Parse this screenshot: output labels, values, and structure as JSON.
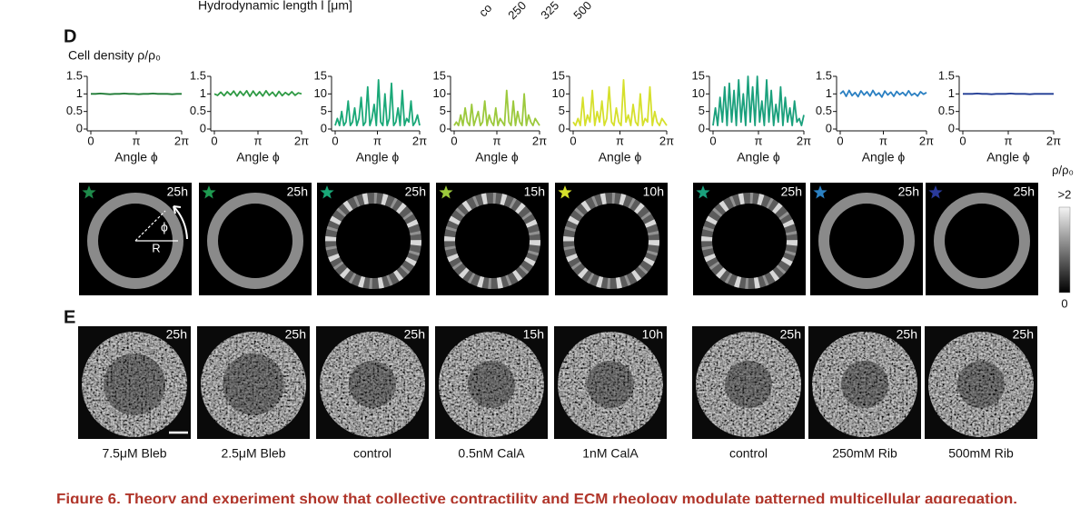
{
  "header": {
    "axis_label": "Hydrodynamic length l [μm]",
    "cropped_ticks": [
      "co",
      "250",
      "325",
      "500"
    ]
  },
  "panel_d": {
    "label": "D",
    "y_label": "Cell density ρ/ρ₀",
    "plots": [
      {
        "type": "line",
        "color": "#1e7a34",
        "xlim": [
          0,
          6.2832
        ],
        "xticks": [
          0,
          {
            "value": 3.1416,
            "label": "π"
          },
          {
            "value": 6.2832,
            "label": "2π"
          }
        ],
        "ylim": [
          0,
          1.5
        ],
        "yticks": [
          0,
          0.5,
          1,
          1.5
        ],
        "x_label": "Angle ϕ",
        "values": [
          1,
          1,
          1.01,
          1,
          0.99,
          1,
          1,
          1.01,
          1,
          1,
          0.99,
          1,
          1,
          1.01,
          1,
          1,
          1,
          0.99,
          1,
          1
        ]
      },
      {
        "type": "line",
        "color": "#2e9a44",
        "xlim": [
          0,
          6.2832
        ],
        "xticks": [
          0,
          {
            "value": 3.1416,
            "label": "π"
          },
          {
            "value": 6.2832,
            "label": "2π"
          }
        ],
        "ylim": [
          0,
          1.5
        ],
        "yticks": [
          0,
          0.5,
          1,
          1.5
        ],
        "x_label": "Angle ϕ",
        "values": [
          1,
          0.96,
          1.05,
          0.95,
          1.06,
          0.97,
          1.08,
          0.94,
          1.07,
          0.96,
          1.09,
          0.93,
          1.08,
          0.95,
          1.06,
          0.94,
          1.09,
          0.96,
          1.05,
          0.93,
          1.07,
          0.95,
          1.04,
          0.97,
          1.06,
          0.96,
          1.03,
          1
        ]
      },
      {
        "type": "line",
        "color": "#1aa878",
        "xlim": [
          0,
          6.2832
        ],
        "xticks": [
          0,
          {
            "value": 3.1416,
            "label": "π"
          },
          {
            "value": 6.2832,
            "label": "2π"
          }
        ],
        "ylim": [
          0,
          15
        ],
        "yticks": [
          0,
          5,
          10,
          15
        ],
        "x_label": "Angle ϕ",
        "values": [
          1,
          3,
          1,
          5,
          1,
          2,
          8,
          1,
          2,
          6,
          1,
          3,
          9,
          1,
          2,
          12,
          1,
          3,
          7,
          1,
          14,
          2,
          1,
          10,
          1,
          3,
          13,
          1,
          2,
          6,
          1,
          11,
          1,
          3,
          2,
          8,
          1,
          2,
          4,
          1
        ]
      },
      {
        "type": "line",
        "color": "#9cc93c",
        "xlim": [
          0,
          6.2832
        ],
        "xticks": [
          0,
          {
            "value": 3.1416,
            "label": "π"
          },
          {
            "value": 6.2832,
            "label": "2π"
          }
        ],
        "ylim": [
          0,
          15
        ],
        "yticks": [
          0,
          5,
          10,
          15
        ],
        "x_label": "Angle ϕ",
        "values": [
          1,
          2,
          1,
          4,
          1,
          6,
          2,
          1,
          7,
          1,
          3,
          5,
          1,
          2,
          8,
          1,
          4,
          2,
          1,
          6,
          1,
          3,
          2,
          1,
          11,
          2,
          1,
          8,
          1,
          5,
          2,
          1,
          10,
          1,
          4,
          2,
          1,
          3,
          2,
          1
        ]
      },
      {
        "type": "line",
        "color": "#d6e02c",
        "xlim": [
          0,
          6.2832
        ],
        "xticks": [
          0,
          {
            "value": 3.1416,
            "label": "π"
          },
          {
            "value": 6.2832,
            "label": "2π"
          }
        ],
        "ylim": [
          0,
          15
        ],
        "yticks": [
          0,
          5,
          10,
          15
        ],
        "x_label": "Angle ϕ",
        "values": [
          2,
          1,
          3,
          1,
          9,
          1,
          4,
          2,
          11,
          1,
          5,
          2,
          8,
          1,
          3,
          12,
          2,
          1,
          6,
          2,
          1,
          14,
          2,
          4,
          1,
          7,
          2,
          1,
          10,
          1,
          3,
          2,
          12,
          1,
          5,
          2,
          1,
          3,
          2,
          1
        ]
      },
      {
        "type": "line",
        "color": "#1aa07c",
        "xlim": [
          0,
          6.2832
        ],
        "xticks": [
          0,
          {
            "value": 3.1416,
            "label": "π"
          },
          {
            "value": 6.2832,
            "label": "2π"
          }
        ],
        "ylim": [
          0,
          15
        ],
        "yticks": [
          0,
          5,
          10,
          15
        ],
        "x_label": "Angle ϕ",
        "values": [
          1,
          6,
          1,
          9,
          2,
          12,
          1,
          13,
          2,
          11,
          1,
          14,
          2,
          10,
          1,
          15,
          2,
          12,
          1,
          15,
          2,
          8,
          1,
          14,
          2,
          11,
          1,
          7,
          2,
          12,
          1,
          9,
          2,
          6,
          1,
          8,
          2,
          3,
          1,
          4
        ]
      },
      {
        "type": "line",
        "color": "#2b80c2",
        "xlim": [
          0,
          6.2832
        ],
        "xticks": [
          0,
          {
            "value": 3.1416,
            "label": "π"
          },
          {
            "value": 6.2832,
            "label": "2π"
          }
        ],
        "ylim": [
          0,
          1.5
        ],
        "yticks": [
          0,
          0.5,
          1,
          1.5
        ],
        "x_label": "Angle ϕ",
        "values": [
          1,
          1.08,
          0.93,
          1.1,
          0.95,
          1.04,
          0.92,
          1.09,
          0.97,
          1.06,
          0.94,
          1.1,
          0.96,
          1.03,
          0.91,
          1.08,
          0.97,
          1.05,
          0.93,
          1.07,
          0.98,
          1.04,
          0.95,
          1.09,
          0.96,
          1.02,
          0.94,
          1.06,
          0.99,
          1.04
        ]
      },
      {
        "type": "line",
        "color": "#1f3a93",
        "xlim": [
          0,
          6.2832
        ],
        "xticks": [
          0,
          {
            "value": 3.1416,
            "label": "π"
          },
          {
            "value": 6.2832,
            "label": "2π"
          }
        ],
        "ylim": [
          0,
          1.5
        ],
        "yticks": [
          0,
          0.5,
          1,
          1.5
        ],
        "x_label": "Angle ϕ",
        "values": [
          1,
          1,
          1,
          1.01,
          1,
          1,
          0.99,
          1,
          1,
          1,
          1.01,
          1,
          1,
          1,
          0.99,
          1,
          1,
          1,
          1,
          1
        ]
      }
    ],
    "images": [
      {
        "time": "25h",
        "star_color": "#1e8a4a",
        "pattern": "uniform"
      },
      {
        "time": "25h",
        "star_color": "#1e9a50",
        "pattern": "uniform"
      },
      {
        "time": "25h",
        "star_color": "#1aa878",
        "pattern": "striped"
      },
      {
        "time": "15h",
        "star_color": "#9cc93c",
        "pattern": "striped"
      },
      {
        "time": "10h",
        "star_color": "#d6e02c",
        "pattern": "striped"
      },
      {
        "time": "25h",
        "star_color": "#1aa07c",
        "pattern": "striped"
      },
      {
        "time": "25h",
        "star_color": "#2b80c2",
        "pattern": "uniform"
      },
      {
        "time": "25h",
        "star_color": "#2a3a9a",
        "pattern": "uniform"
      }
    ],
    "annotation": {
      "angle": "ϕ",
      "radius": "R"
    },
    "colorbar": {
      "title": "ρ/ρ₀",
      "max_label": ">2",
      "min_label": "0"
    }
  },
  "panel_e": {
    "label": "E",
    "images": [
      {
        "time": "25h",
        "condition": "7.5μM Bleb"
      },
      {
        "time": "25h",
        "condition": "2.5μM Bleb"
      },
      {
        "time": "25h",
        "condition": "control"
      },
      {
        "time": "15h",
        "condition": "0.5nM CalA"
      },
      {
        "time": "10h",
        "condition": "1nM CalA"
      },
      {
        "time": "25h",
        "condition": "control"
      },
      {
        "time": "25h",
        "condition": "250mM Rib"
      },
      {
        "time": "25h",
        "condition": "500mM Rib"
      }
    ]
  },
  "caption": "Figure 6. Theory and experiment show that collective contractility and ECM rheology modulate patterned multicellular aggregation."
}
